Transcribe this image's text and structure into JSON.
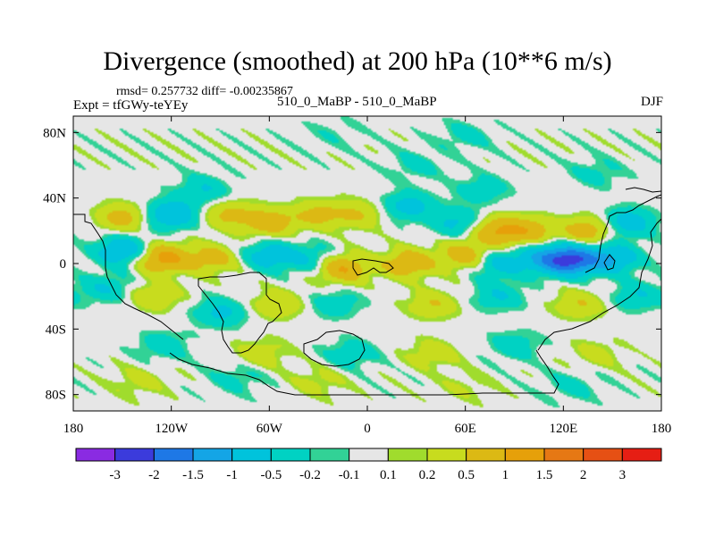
{
  "header": {
    "title": "Divergence (smoothed) at 200 hPa (10**6 m/s)",
    "stats": "rmsd= 0.257732 diff= -0.00235867",
    "experiment": "Expt = tfGWy-teYEy",
    "runs": "510_0_MaBP - 510_0_MaBP",
    "season": "DJF"
  },
  "chart_data": {
    "type": "heatmap",
    "title": "Divergence (smoothed) at 200 hPa (10**6 m/s)",
    "xlabel": "",
    "ylabel": "",
    "xlim": [
      -180,
      180
    ],
    "ylim": [
      -90,
      90
    ],
    "x_ticks": [
      {
        "value": -180,
        "label": "180"
      },
      {
        "value": -120,
        "label": "120W"
      },
      {
        "value": -60,
        "label": "60W"
      },
      {
        "value": 0,
        "label": "0"
      },
      {
        "value": 60,
        "label": "60E"
      },
      {
        "value": 120,
        "label": "120E"
      },
      {
        "value": 180,
        "label": "180"
      }
    ],
    "y_ticks": [
      {
        "value": 80,
        "label": "80N"
      },
      {
        "value": 40,
        "label": "40N"
      },
      {
        "value": 0,
        "label": "0"
      },
      {
        "value": -40,
        "label": "40S"
      },
      {
        "value": -80,
        "label": "80S"
      }
    ],
    "colorbar": {
      "levels": [
        "-3",
        "-2",
        "-1.5",
        "-1",
        "-0.5",
        "-0.2",
        "-0.1",
        "0.1",
        "0.2",
        "0.5",
        "1",
        "1.5",
        "2",
        "3"
      ],
      "colors": [
        "#8a2be2",
        "#3b3bdc",
        "#1e78e6",
        "#14a5e6",
        "#00c3dc",
        "#00d2c3",
        "#32d296",
        "#e6e6e6",
        "#a0dc2d",
        "#c8dc1e",
        "#dcb914",
        "#e6a00a",
        "#e67814",
        "#e65014",
        "#e61e14"
      ]
    },
    "field": [
      {
        "lon": -150,
        "lat": 8,
        "value": -1.0
      },
      {
        "lon": -125,
        "lat": 3,
        "value": 1.2
      },
      {
        "lon": -95,
        "lat": 3,
        "value": 0.7
      },
      {
        "lon": -60,
        "lat": 5,
        "value": -0.8
      },
      {
        "lon": -35,
        "lat": 3,
        "value": -0.5
      },
      {
        "lon": -15,
        "lat": -3,
        "value": 1.0
      },
      {
        "lon": 25,
        "lat": 0,
        "value": 0.9
      },
      {
        "lon": 60,
        "lat": 5,
        "value": 0.8
      },
      {
        "lon": 80,
        "lat": 0,
        "value": -0.7
      },
      {
        "lon": 108,
        "lat": 3,
        "value": -0.9
      },
      {
        "lon": 125,
        "lat": 2,
        "value": -2.0
      },
      {
        "lon": 150,
        "lat": 3,
        "value": -1.0
      },
      {
        "lon": -150,
        "lat": 28,
        "value": 0.7
      },
      {
        "lon": -120,
        "lat": 30,
        "value": -1.0
      },
      {
        "lon": -85,
        "lat": 30,
        "value": 0.6
      },
      {
        "lon": -60,
        "lat": 25,
        "value": 0.8
      },
      {
        "lon": -30,
        "lat": 30,
        "value": 0.6
      },
      {
        "lon": -5,
        "lat": 30,
        "value": 0.5
      },
      {
        "lon": 25,
        "lat": 35,
        "value": -0.7
      },
      {
        "lon": 55,
        "lat": 25,
        "value": -0.6
      },
      {
        "lon": 80,
        "lat": 20,
        "value": 1.0
      },
      {
        "lon": 100,
        "lat": 20,
        "value": 0.7
      },
      {
        "lon": 135,
        "lat": 20,
        "value": 0.8
      },
      {
        "lon": 160,
        "lat": 25,
        "value": -0.8
      },
      {
        "lon": -100,
        "lat": 45,
        "value": -0.5
      },
      {
        "lon": 70,
        "lat": 45,
        "value": -0.4
      },
      {
        "lon": 30,
        "lat": 60,
        "value": -0.3
      },
      {
        "lon": 140,
        "lat": 55,
        "value": -0.3
      },
      {
        "lon": -20,
        "lat": 80,
        "value": -0.15
      },
      {
        "lon": 60,
        "lat": 78,
        "value": -0.3
      },
      {
        "lon": -160,
        "lat": -15,
        "value": -0.5
      },
      {
        "lon": -130,
        "lat": -20,
        "value": 0.5
      },
      {
        "lon": -90,
        "lat": -30,
        "value": -0.6
      },
      {
        "lon": -55,
        "lat": -25,
        "value": 0.5
      },
      {
        "lon": -20,
        "lat": -25,
        "value": -0.4
      },
      {
        "lon": 40,
        "lat": -25,
        "value": 0.5
      },
      {
        "lon": 80,
        "lat": -20,
        "value": -0.5
      },
      {
        "lon": 130,
        "lat": -25,
        "value": 0.5
      },
      {
        "lon": 165,
        "lat": -20,
        "value": -0.5
      },
      {
        "lon": -125,
        "lat": -50,
        "value": -0.4
      },
      {
        "lon": -65,
        "lat": -55,
        "value": 0.4
      },
      {
        "lon": -10,
        "lat": -55,
        "value": -0.4
      },
      {
        "lon": 40,
        "lat": -55,
        "value": 0.4
      },
      {
        "lon": 90,
        "lat": -50,
        "value": -0.4
      },
      {
        "lon": 140,
        "lat": -55,
        "value": 0.3
      },
      {
        "lon": -140,
        "lat": -72,
        "value": 0.3
      },
      {
        "lon": -80,
        "lat": -70,
        "value": -0.3
      },
      {
        "lon": -30,
        "lat": -72,
        "value": 0.3
      },
      {
        "lon": 125,
        "lat": -75,
        "value": -0.3
      },
      {
        "lon": 60,
        "lat": -75,
        "value": 0.2
      }
    ]
  },
  "map_style": {
    "background": "#ffffff",
    "neutral": "#e6e6e6",
    "coastline": "#000000"
  }
}
